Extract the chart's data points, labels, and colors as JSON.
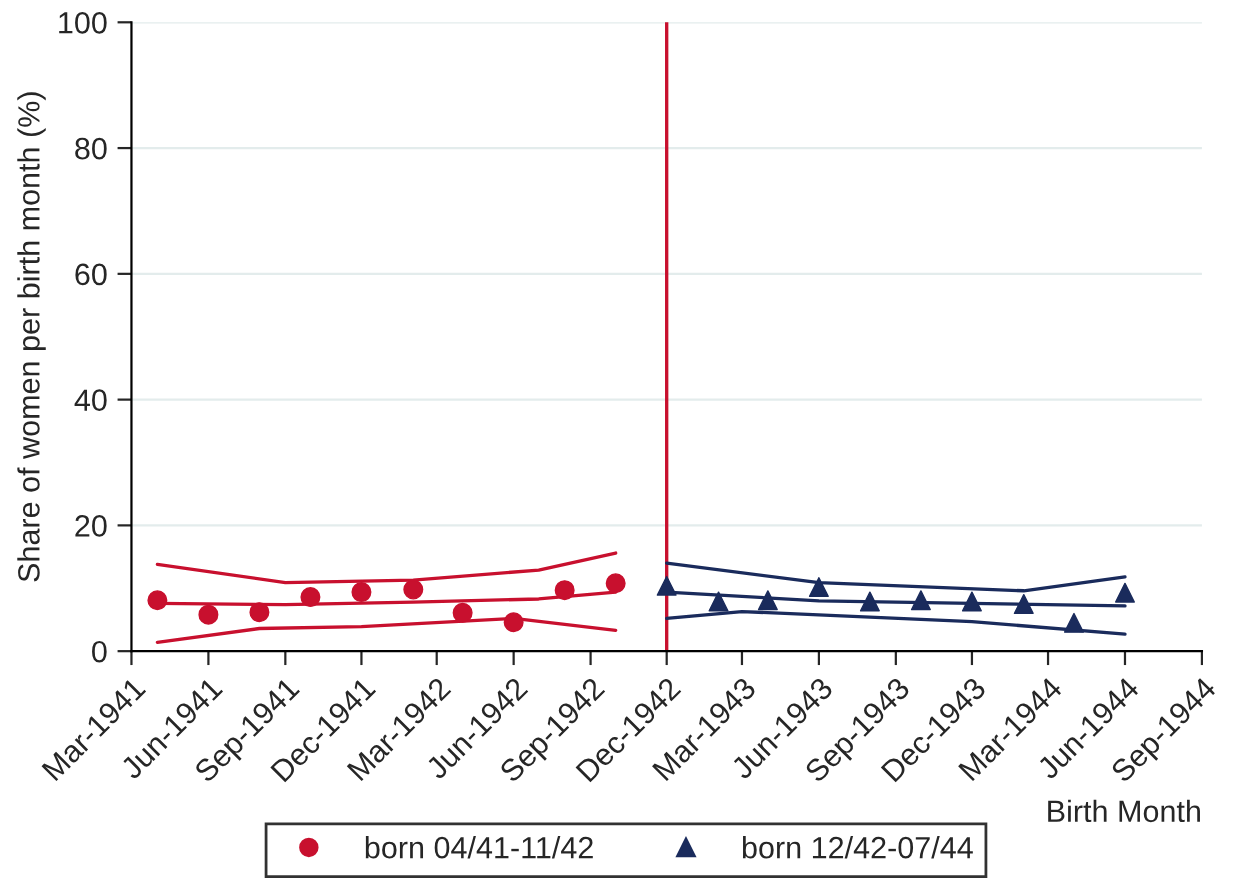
{
  "chart_data": {
    "type": "scatter",
    "xlabel": "Birth Month",
    "ylabel": "Share of women per birth month (%)",
    "xlim": [
      "1941-03",
      "1944-09"
    ],
    "xticks": [
      {
        "value": "1941-03",
        "label": "Mar-1941"
      },
      {
        "value": "1941-06",
        "label": "Jun-1941"
      },
      {
        "value": "1941-09",
        "label": "Sep-1941"
      },
      {
        "value": "1941-12",
        "label": "Dec-1941"
      },
      {
        "value": "1942-03",
        "label": "Mar-1942"
      },
      {
        "value": "1942-06",
        "label": "Jun-1942"
      },
      {
        "value": "1942-09",
        "label": "Sep-1942"
      },
      {
        "value": "1942-12",
        "label": "Dec-1942"
      },
      {
        "value": "1943-03",
        "label": "Mar-1943"
      },
      {
        "value": "1943-06",
        "label": "Jun-1943"
      },
      {
        "value": "1943-09",
        "label": "Sep-1943"
      },
      {
        "value": "1943-12",
        "label": "Dec-1943"
      },
      {
        "value": "1944-03",
        "label": "Mar-1944"
      },
      {
        "value": "1944-06",
        "label": "Jun-1944"
      },
      {
        "value": "1944-09",
        "label": "Sep-1944"
      }
    ],
    "ylim": [
      0,
      100
    ],
    "yticks": [
      0,
      20,
      40,
      60,
      80,
      100
    ],
    "grid": "y",
    "legend": "bottom",
    "ref_lines": [
      {
        "axis": "x",
        "value": "1942-12",
        "color": "#c8102e"
      }
    ],
    "series": [
      {
        "name": "born 04/41-11/42",
        "marker": "circle",
        "color": "#c8102e",
        "x": [
          "1941-04",
          "1941-06",
          "1941-08",
          "1941-10",
          "1941-12",
          "1942-02",
          "1942-04",
          "1942-06",
          "1942-08",
          "1942-10"
        ],
        "values": [
          8.1,
          5.8,
          6.2,
          8.6,
          9.4,
          9.8,
          6.1,
          4.6,
          9.7,
          10.8
        ]
      },
      {
        "name": "born 12/42-07/44",
        "marker": "triangle",
        "color": "#1a2b5c",
        "x": [
          "1942-12",
          "1943-02",
          "1943-04",
          "1943-06",
          "1943-08",
          "1943-10",
          "1943-12",
          "1944-02",
          "1944-04",
          "1944-06"
        ],
        "values": [
          10.4,
          7.9,
          8.1,
          10.2,
          7.9,
          8.1,
          7.9,
          7.5,
          4.5,
          9.3
        ]
      },
      {
        "type": "line",
        "color": "#c8102e",
        "x": [
          "1941-04",
          "1941-09",
          "1942-02",
          "1942-07",
          "1942-10"
        ],
        "values": [
          7.6,
          7.4,
          7.8,
          8.3,
          9.4
        ]
      },
      {
        "type": "line",
        "color": "#c8102e",
        "x": [
          "1941-04",
          "1941-09",
          "1942-02",
          "1942-07",
          "1942-10"
        ],
        "values": [
          13.8,
          10.9,
          11.3,
          12.9,
          15.6
        ]
      },
      {
        "type": "line",
        "color": "#c8102e",
        "x": [
          "1941-04",
          "1941-08",
          "1941-12",
          "1942-06",
          "1942-10"
        ],
        "values": [
          1.4,
          3.6,
          3.9,
          5.2,
          3.3
        ]
      },
      {
        "type": "line",
        "color": "#1a2b5c",
        "x": [
          "1942-12",
          "1943-06",
          "1944-06"
        ],
        "values": [
          9.4,
          8.0,
          7.2
        ]
      },
      {
        "type": "line",
        "color": "#1a2b5c",
        "x": [
          "1942-12",
          "1943-06",
          "1944-02",
          "1944-06"
        ],
        "values": [
          14.0,
          10.9,
          9.6,
          11.8
        ]
      },
      {
        "type": "line",
        "color": "#1a2b5c",
        "x": [
          "1942-12",
          "1943-03",
          "1943-12",
          "1944-06"
        ],
        "values": [
          5.2,
          6.3,
          4.7,
          2.7
        ]
      }
    ]
  }
}
